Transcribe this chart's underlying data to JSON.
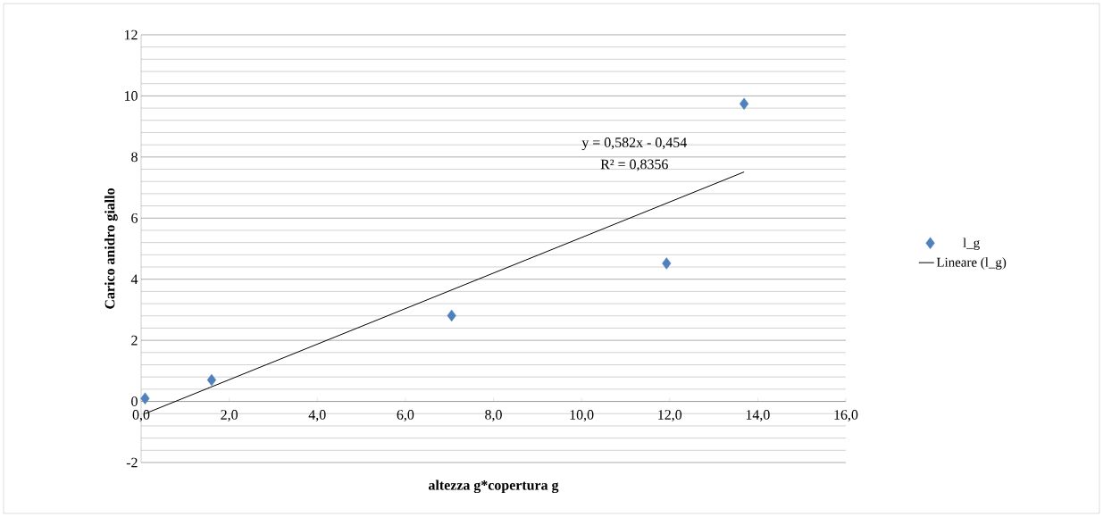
{
  "chart_data": {
    "type": "scatter",
    "xlabel": "altezza g*copertura g",
    "ylabel": "Carico anidro giallo",
    "series": [
      {
        "name": "l_g",
        "color": "#4f81bd",
        "marker": "diamond",
        "x": [
          0.09,
          1.6,
          7.05,
          11.93,
          13.69
        ],
        "values": [
          0.1,
          0.7,
          2.81,
          4.52,
          9.74
        ]
      },
      {
        "name": "Lineare (l_g)",
        "type": "line",
        "color": "#000000",
        "line_style": "solid",
        "x": [
          0.09,
          13.69
        ],
        "values": [
          -0.4,
          7.51
        ]
      }
    ],
    "annotations": [
      "y = 0,582x - 0,454",
      "R² = 0,8356"
    ],
    "xlim": [
      0,
      16
    ],
    "ylim": [
      -2,
      12
    ],
    "xticks": [
      {
        "value": 0,
        "label": "0,0"
      },
      {
        "value": 2,
        "label": "2,0"
      },
      {
        "value": 4,
        "label": "4,0"
      },
      {
        "value": 6,
        "label": "6,0"
      },
      {
        "value": 8,
        "label": "8,0"
      },
      {
        "value": 10,
        "label": "10,0"
      },
      {
        "value": 12,
        "label": "12,0"
      },
      {
        "value": 14,
        "label": "14,0"
      },
      {
        "value": 16,
        "label": "16,0"
      }
    ],
    "yticks": [
      -2,
      0,
      2,
      4,
      6,
      8,
      10,
      12
    ],
    "grid": "y",
    "legend": "right"
  }
}
